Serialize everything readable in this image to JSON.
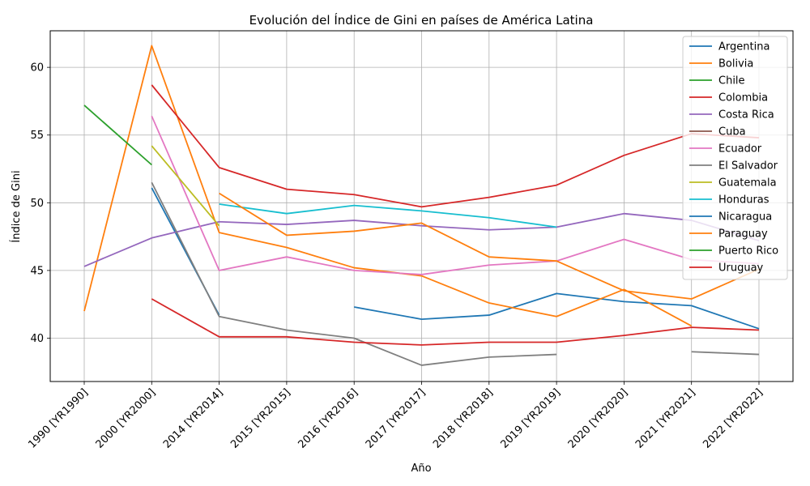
{
  "chart_data": {
    "type": "line",
    "title": "Evolución del Índice de Gini en países de América Latina",
    "xlabel": "Año",
    "ylabel": "Índice de Gini",
    "categories": [
      "1990 [YR1990]",
      "2000 [YR2000]",
      "2014 [YR2014]",
      "2015 [YR2015]",
      "2016 [YR2016]",
      "2017 [YR2017]",
      "2018 [YR2018]",
      "2019 [YR2019]",
      "2020 [YR2020]",
      "2021 [YR2021]",
      "2022 [YR2022]"
    ],
    "ylim": [
      36.8,
      62.7
    ],
    "yticks": [
      40,
      45,
      50,
      55,
      60
    ],
    "grid": true,
    "legend_position": "top-right",
    "series": [
      {
        "name": "Argentina",
        "color": "#1f77b4",
        "values": [
          null,
          51.1,
          41.7,
          null,
          42.3,
          41.4,
          41.7,
          43.3,
          42.7,
          42.4,
          40.7
        ]
      },
      {
        "name": "Bolivia",
        "color": "#ff7f0e",
        "values": [
          42.0,
          61.6,
          47.8,
          46.7,
          45.2,
          44.6,
          42.6,
          41.6,
          43.6,
          40.9,
          null
        ]
      },
      {
        "name": "Chile",
        "color": "#2ca02c",
        "values": [
          57.2,
          52.8,
          null,
          null,
          null,
          null,
          null,
          null,
          null,
          null,
          null
        ]
      },
      {
        "name": "Colombia",
        "color": "#d62728",
        "values": [
          null,
          58.7,
          52.6,
          51.0,
          50.6,
          49.7,
          50.4,
          51.3,
          53.5,
          55.1,
          54.8
        ]
      },
      {
        "name": "Costa Rica",
        "color": "#9467bd",
        "values": [
          45.3,
          47.4,
          48.6,
          48.4,
          48.7,
          48.3,
          48.0,
          48.2,
          49.2,
          48.7,
          47.2
        ]
      },
      {
        "name": "Cuba",
        "color": "#8c564b",
        "values": [
          null,
          null,
          null,
          null,
          null,
          null,
          null,
          null,
          null,
          null,
          null
        ]
      },
      {
        "name": "Ecuador",
        "color": "#e377c2",
        "values": [
          null,
          56.4,
          45.0,
          46.0,
          45.0,
          44.7,
          45.4,
          45.7,
          47.3,
          45.8,
          45.5
        ]
      },
      {
        "name": "El Salvador",
        "color": "#7f7f7f",
        "values": [
          null,
          51.5,
          41.6,
          40.6,
          40.0,
          38.0,
          38.6,
          38.8,
          null,
          39.0,
          38.8
        ]
      },
      {
        "name": "Guatemala",
        "color": "#bcbd22",
        "values": [
          null,
          54.2,
          48.3,
          null,
          null,
          null,
          null,
          null,
          null,
          null,
          null
        ]
      },
      {
        "name": "Honduras",
        "color": "#17becf",
        "values": [
          null,
          null,
          49.9,
          49.2,
          49.8,
          49.4,
          48.9,
          48.2,
          null,
          null,
          null
        ]
      },
      {
        "name": "Nicaragua",
        "color": "#1f77b4",
        "values": [
          null,
          null,
          null,
          null,
          null,
          null,
          null,
          null,
          null,
          null,
          null
        ]
      },
      {
        "name": "Paraguay",
        "color": "#ff7f0e",
        "values": [
          null,
          null,
          50.7,
          47.6,
          47.9,
          48.5,
          46.0,
          45.7,
          43.5,
          42.9,
          45.1
        ]
      },
      {
        "name": "Puerto Rico",
        "color": "#2ca02c",
        "values": [
          null,
          null,
          null,
          null,
          null,
          null,
          null,
          null,
          null,
          null,
          null
        ]
      },
      {
        "name": "Uruguay",
        "color": "#d62728",
        "values": [
          null,
          42.9,
          40.1,
          40.1,
          39.7,
          39.5,
          39.7,
          39.7,
          40.2,
          40.8,
          40.6
        ]
      }
    ]
  }
}
